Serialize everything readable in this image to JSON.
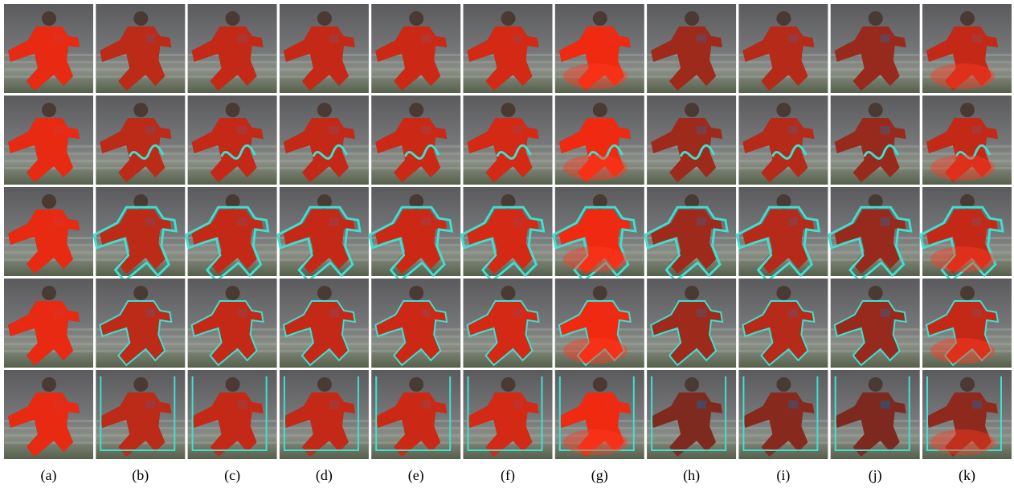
{
  "columns": [
    "(a)",
    "(b)",
    "(c)",
    "(d)",
    "(e)",
    "(f)",
    "(g)",
    "(h)",
    "(i)",
    "(j)",
    "(k)"
  ]
}
